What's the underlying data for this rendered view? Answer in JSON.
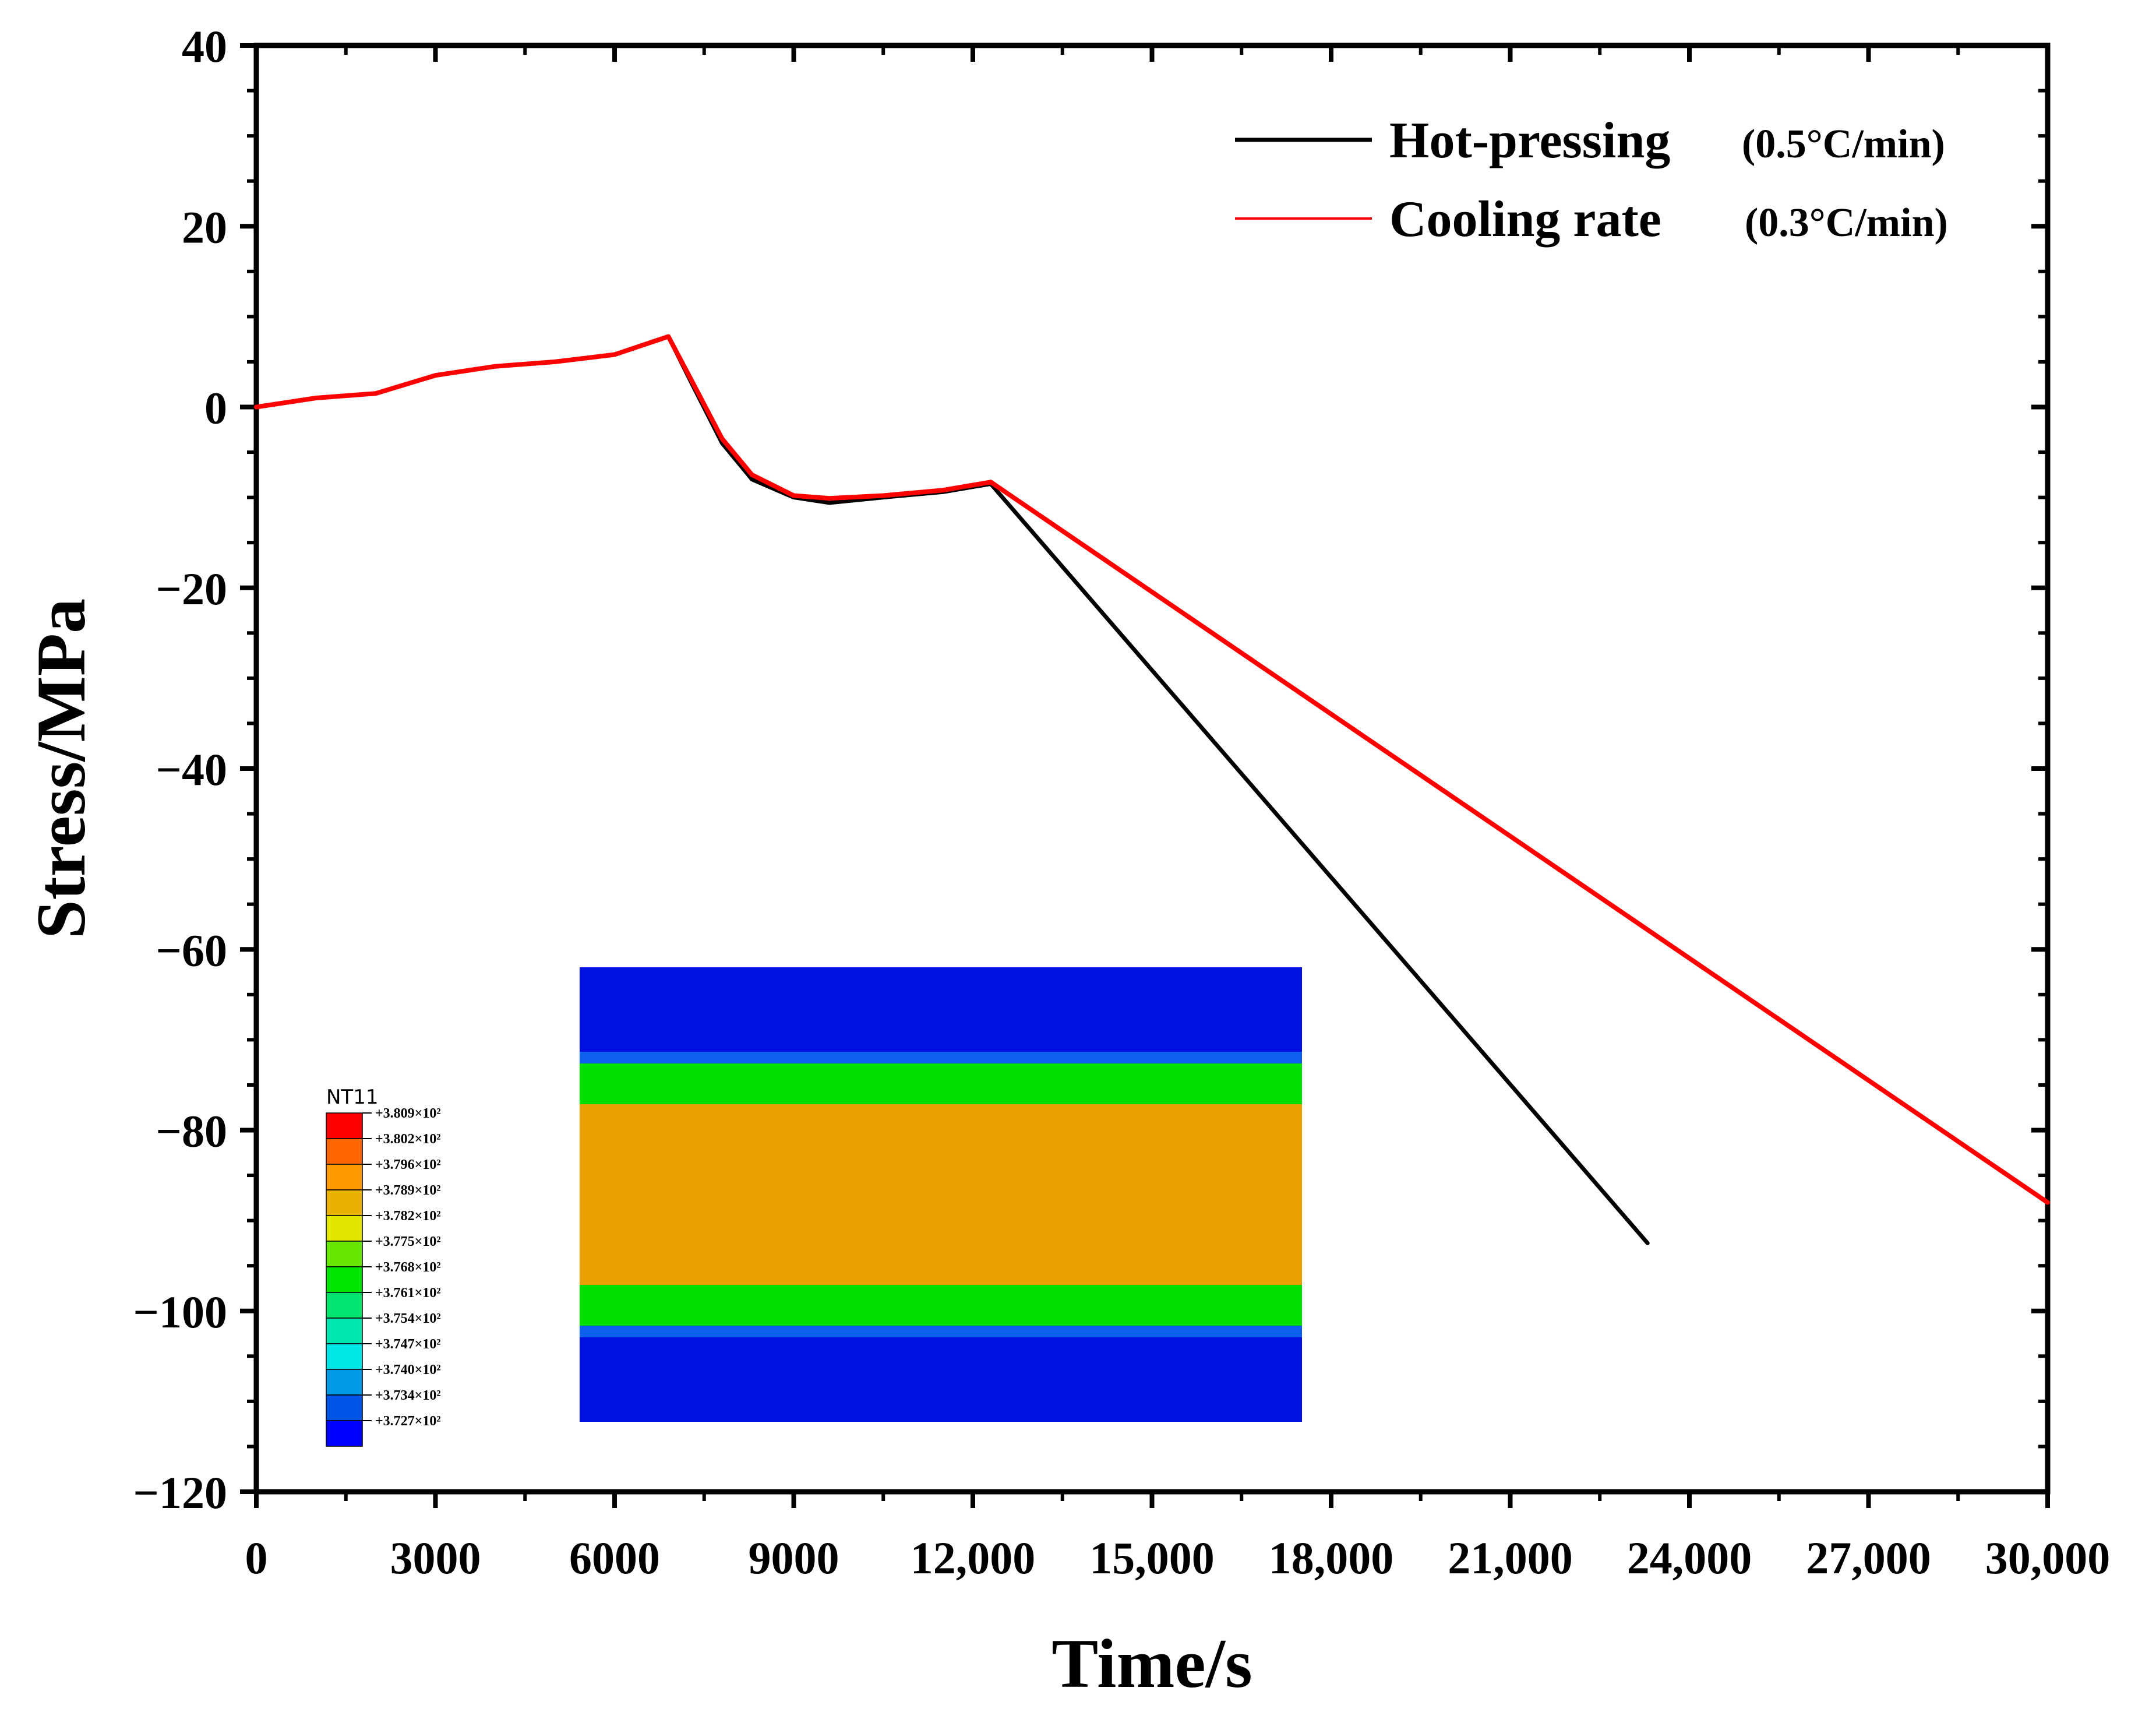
{
  "chart_data": {
    "type": "line",
    "title": "",
    "xlabel": "Time/s",
    "ylabel": "Stress/MPa",
    "xlim": [
      0,
      30000
    ],
    "ylim": [
      -120,
      40
    ],
    "xticks": [
      0,
      3000,
      6000,
      9000,
      12000,
      15000,
      18000,
      21000,
      24000,
      27000,
      30000
    ],
    "xtick_labels": [
      "0",
      "3000",
      "6000",
      "9000",
      "12,000",
      "15,000",
      "18,000",
      "21,000",
      "24,000",
      "27,000",
      "30,000"
    ],
    "yticks": [
      40,
      20,
      0,
      -20,
      -40,
      -60,
      -80,
      -100,
      -120
    ],
    "ytick_labels": [
      "40",
      "20",
      "0",
      "−20",
      "−40",
      "−60",
      "−80",
      "−100",
      "−120"
    ],
    "grid": false,
    "legend_position": "top-right",
    "series": [
      {
        "name": "Hot-pressing",
        "detail": "(0.5°C/min)",
        "color": "#000000",
        "x": [
          0,
          1000,
          2000,
          3000,
          4000,
          5000,
          6000,
          6900,
          7300,
          7800,
          8300,
          9000,
          9600,
          10500,
          11500,
          12300,
          23300
        ],
        "y": [
          0,
          1.0,
          1.5,
          3.5,
          4.5,
          5.0,
          5.8,
          7.8,
          2.5,
          -4.0,
          -8.0,
          -10.0,
          -10.6,
          -10.0,
          -9.4,
          -8.5,
          -92.5
        ]
      },
      {
        "name": "Cooling rate",
        "detail": "(0.3°C/min)",
        "color": "#ff0000",
        "x": [
          0,
          1000,
          2000,
          3000,
          4000,
          5000,
          6000,
          6900,
          7300,
          7800,
          8300,
          9000,
          9600,
          10500,
          11500,
          12300,
          30000
        ],
        "y": [
          0,
          1.0,
          1.5,
          3.5,
          4.5,
          5.0,
          5.8,
          7.8,
          2.8,
          -3.5,
          -7.5,
          -9.8,
          -10.1,
          -9.8,
          -9.2,
          -8.3,
          -88.0
        ]
      }
    ]
  },
  "inset": {
    "colorbar": {
      "title": "NT11",
      "colors": [
        "#ff0000",
        "#ff6600",
        "#ff9900",
        "#e8b000",
        "#e2e600",
        "#66e600",
        "#00e600",
        "#00e670",
        "#00e6b0",
        "#00e6e6",
        "#0099e6",
        "#0055e6",
        "#0000ff"
      ],
      "labels": [
        "+3.809×10²",
        "+3.802×10²",
        "+3.796×10²",
        "+3.789×10²",
        "+3.782×10²",
        "+3.775×10²",
        "+3.768×10²",
        "+3.761×10²",
        "+3.754×10²",
        "+3.747×10²",
        "+3.740×10²",
        "+3.734×10²",
        "+3.727×10²"
      ]
    },
    "contour_bands": [
      {
        "color": "#0010e0"
      },
      {
        "color": "#1060f0"
      },
      {
        "color": "#00e000"
      },
      {
        "color": "#eaa000"
      },
      {
        "color": "#00e000"
      },
      {
        "color": "#1060f0"
      },
      {
        "color": "#0010e0"
      }
    ]
  }
}
